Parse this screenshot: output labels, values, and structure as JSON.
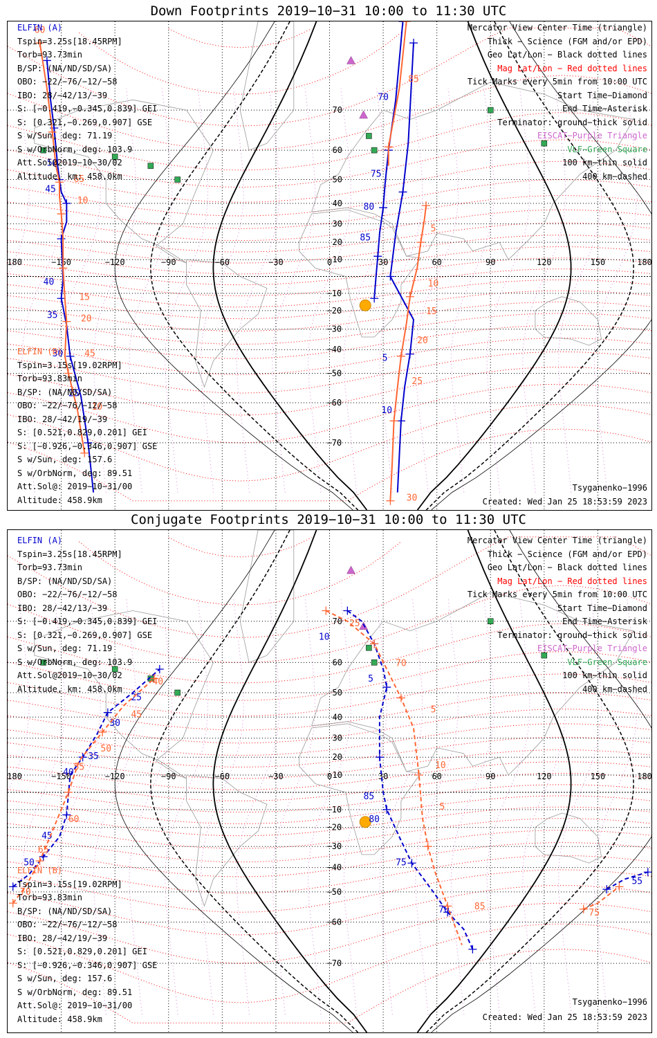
{
  "panels": [
    {
      "title": "Down Footprints 2019−10−31 10:00 to 11:30 UTC",
      "elfin_a": [
        "ELFIN (A)",
        "Tspin=3.25s[18.45RPM]",
        "Torb=93.73min",
        "B/SP: (NA/ND/SD/SA)",
        "OBO: −22/−76/−12/−58",
        "IBO: 28/−42/13/−39",
        "S: [−0.419,−0.345,0.839] GEI",
        "S: [0.321,−0.269,0.907] GSE",
        "S w/Sun, deg: 71.19",
        "S w/OrbNorm, deg: 103.9",
        "Att.Sol@2019−10−30/02",
        "Altitude, km: 458.0km"
      ],
      "elfin_b": [
        "ELFIN (B)",
        "Tspin=3.15s[19.02RPM]",
        "Torb=93.83min",
        "B/SP: (NA/ND/SD/SA)",
        "OBO: −22/−76/−12/−58",
        "IBO: 28/−42/19/−39",
        "S: [0.521,0.829,0.201] GEI",
        "S: [−0.926,−0.346,0.907] GSE",
        "S w/Sun, deg: 157.6",
        "S w/OrbNorm, deg: 89.51",
        "Att.Sol@: 2019−10−31/00",
        "Altitude: 458.9km"
      ],
      "model": "Tsyganenko−1996",
      "created": "Created: Wed Jan 25 18:53:59 2023"
    },
    {
      "title": "Conjugate Footprints 2019−10−31 10:00 to 11:30 UTC",
      "elfin_a": [
        "ELFIN (A)",
        "Tspin=3.25s[18.45RPM]",
        "Torb=93.73min",
        "B/SP: (NA/ND/SD/SA)",
        "OBO: −22/−76/−12/−58",
        "IBO: 28/−42/13/−39",
        "S: [−0.419,−0.345,0.839] GEI",
        "S: [0.321,−0.269,0.907] GSE",
        "S w/Sun, deg: 71.19",
        "S w/OrbNorm, deg: 103.9",
        "Att.Sol@2019−10−30/02",
        "Altitude, km: 458.0km"
      ],
      "elfin_b": [
        "ELFIN (B)",
        "Tspin=3.15s[19.02RPM]",
        "Torb=93.83min",
        "B/SP: (NA/ND/SD/SA)",
        "OBO: −22/−76/−12/−58",
        "IBO: 28/−42/19/−39",
        "S: [0.521,0.829,0.201] GEI",
        "S: [−0.926,−0.346,0.907] GSE",
        "S w/Sun, deg: 157.6",
        "S w/OrbNorm, deg: 89.51",
        "Att.Sol@: 2019−10−31/00",
        "Altitude: 458.9km"
      ],
      "model": "Tsyganenko−1996",
      "created": "Created: Wed Jan 25 18:53:59 2023"
    }
  ],
  "legend": [
    {
      "text": "Mercator View Center Time (triangle)",
      "color": "#000000"
    },
    {
      "text": "Thick − Science (FGM and/or EPD)",
      "color": "#000000"
    },
    {
      "text": "Geo Lat/Lon − Black dotted lines",
      "color": "#000000"
    },
    {
      "text": "Mag Lat/Lon − Red dotted lines",
      "color": "#ff0000"
    },
    {
      "text": "Tick Marks every 5min from 10:00 UTC",
      "color": "#000000"
    },
    {
      "text": "Start Time−Diamond",
      "color": "#000000"
    },
    {
      "text": "End Time−Asterisk",
      "color": "#000000"
    },
    {
      "text": "Terminator: ground−thick solid",
      "color": "#000000"
    },
    {
      "text": "EISCAT−Purple Triangle",
      "color": "#cc66cc"
    },
    {
      "text": "VLF−Green Square",
      "color": "#33aa55"
    },
    {
      "text": "100 km−thin solid",
      "color": "#000000"
    },
    {
      "text": "400 km−dashed",
      "color": "#000000"
    }
  ],
  "lon_ticks": [
    "180",
    "−150",
    "−120",
    "−90",
    "−60",
    "−30",
    "0",
    "30",
    "60",
    "90",
    "120",
    "150",
    "180"
  ],
  "lat_ticks_n": [
    "70",
    "60",
    "50",
    "40",
    "30",
    "20",
    "10"
  ],
  "lat_ticks_s": [
    "−10",
    "−20",
    "−30",
    "−40",
    "−50",
    "−60",
    "−70"
  ],
  "colors": {
    "elfin_a": "#0000cc",
    "elfin_b": "#ff6633",
    "eiscat": "#cc66cc",
    "vlf": "#33aa55",
    "sun": "#ffaa00",
    "mag_grid": "#ff0000"
  },
  "chart_data": [
    {
      "type": "map",
      "title": "Down Footprints 2019−10−31 10:00 to 11:30 UTC",
      "projection": "mercator",
      "xlim": [
        -180,
        180
      ],
      "ylim": [
        -80,
        82
      ],
      "series": [
        {
          "name": "ELFIN (A)",
          "color": "#0000cc",
          "tracks": [
            [
              [
                -158,
                78
              ],
              [
                -156,
                72
              ],
              [
                -154,
                66
              ],
              [
                -152,
                55
              ],
              [
                -151,
                50
              ],
              [
                -150,
                45
              ],
              [
                -147,
                40
              ],
              [
                -147,
                31
              ],
              [
                -150,
                22
              ],
              [
                -149,
                -2
              ],
              [
                -150,
                -13
              ],
              [
                -147,
                -28
              ],
              [
                -145,
                -43
              ],
              [
                -139,
                -58
              ],
              [
                -135,
                -70
              ],
              [
                -132,
                -78
              ]
            ],
            [
              [
                41,
                82
              ],
              [
                37,
                72
              ],
              [
                33,
                60
              ],
              [
                31,
                48
              ],
              [
                30,
                38
              ],
              [
                28,
                25
              ],
              [
                27,
                12
              ],
              [
                26,
                0
              ],
              [
                25,
                -13
              ]
            ],
            [
              [
                47,
                80
              ],
              [
                44,
                62
              ],
              [
                41,
                45
              ],
              [
                37,
                25
              ],
              [
                34,
                0
              ],
              [
                47,
                -25
              ],
              [
                45,
                -42
              ],
              [
                42,
                -55
              ],
              [
                40,
                -65
              ],
              [
                38,
                -78
              ]
            ]
          ],
          "tick_labels": [
            {
              "label": "70",
              "lon": 30,
              "lat": 72
            },
            {
              "label": "75",
              "lon": 26,
              "lat": 51
            },
            {
              "label": "80",
              "lon": 22,
              "lat": 37
            },
            {
              "label": "85",
              "lon": 20,
              "lat": 21
            },
            {
              "label": "5",
              "lon": 31,
              "lat": -45
            },
            {
              "label": "10",
              "lon": 32,
              "lat": -63
            },
            {
              "label": "50",
              "lon": -155,
              "lat": 55
            },
            {
              "label": "45",
              "lon": -156,
              "lat": 45
            },
            {
              "label": "40",
              "lon": -157,
              "lat": -5
            },
            {
              "label": "35",
              "lon": -155,
              "lat": -24
            },
            {
              "label": "30",
              "lon": -152,
              "lat": -43
            },
            {
              "label": "25",
              "lon": -143,
              "lat": -58
            }
          ]
        },
        {
          "name": "ELFIN (B)",
          "color": "#ff6633",
          "tracks": [
            [
              [
                -162,
                80
              ],
              [
                -158,
                74
              ],
              [
                -155,
                65
              ],
              [
                -153,
                55
              ],
              [
                -151,
                49
              ],
              [
                -151,
                43
              ],
              [
                -150,
                35
              ],
              [
                -149,
                22
              ],
              [
                -149,
                5
              ],
              [
                -148,
                -13
              ],
              [
                -147,
                -26
              ],
              [
                -148,
                -43
              ],
              [
                -146,
                -50
              ],
              [
                -141,
                -62
              ],
              [
                -137,
                -72
              ]
            ],
            [
              [
                43,
                82
              ],
              [
                39,
                74
              ],
              [
                33,
                61
              ],
              [
                33,
                55
              ]
            ],
            [
              [
                54,
                39
              ],
              [
                53,
                32
              ],
              [
                51,
                20
              ],
              [
                49,
                5
              ],
              [
                45,
                -12
              ],
              [
                43,
                -27
              ],
              [
                40,
                -43
              ],
              [
                38,
                -55
              ],
              [
                36,
                -65
              ],
              [
                35,
                -74
              ],
              [
                34,
                -79
              ]
            ]
          ],
          "tick_labels": [
            {
              "label": "85",
              "lon": 47,
              "lat": 75
            },
            {
              "label": "5",
              "lon": 58,
              "lat": 26
            },
            {
              "label": "10",
              "lon": 58,
              "lat": -6
            },
            {
              "label": "15",
              "lon": 57,
              "lat": -22
            },
            {
              "label": "20",
              "lon": 52,
              "lat": -37
            },
            {
              "label": "25",
              "lon": 49,
              "lat": -54
            },
            {
              "label": "30",
              "lon": 46,
              "lat": -79
            },
            {
              "label": "60",
              "lon": -162,
              "lat": 81
            },
            {
              "label": "65",
              "lon": -140,
              "lat": 49
            },
            {
              "label": "10",
              "lon": -138,
              "lat": 40
            },
            {
              "label": "15",
              "lon": -137,
              "lat": -14
            },
            {
              "label": "20",
              "lon": -136,
              "lat": -26
            },
            {
              "label": "45",
              "lon": -134,
              "lat": -43
            },
            {
              "label": "10",
              "lon": -130,
              "lat": -62
            }
          ]
        }
      ]
    },
    {
      "type": "map",
      "title": "Conjugate Footprints 2019−10−31 10:00 to 11:30 UTC",
      "projection": "mercator",
      "xlim": [
        -180,
        180
      ],
      "ylim": [
        -80,
        82
      ],
      "series": [
        {
          "name": "ELFIN (A)",
          "color": "#0000cc",
          "tracks": [
            [
              [
                -177,
                -48
              ],
              [
                -168,
                -43
              ],
              [
                -160,
                -35
              ],
              [
                -151,
                -25
              ],
              [
                -147,
                -13
              ],
              [
                -145,
                10
              ],
              [
                -138,
                20
              ],
              [
                -130,
                32
              ],
              [
                -124,
                42
              ],
              [
                -110,
                50
              ],
              [
                -95,
                58
              ]
            ],
            [
              [
                10,
                72
              ],
              [
                18,
                70
              ],
              [
                25,
                65
              ],
              [
                30,
                58
              ],
              [
                32,
                52
              ],
              [
                28,
                40
              ],
              [
                28,
                20
              ],
              [
                30,
                0
              ],
              [
                32,
                -10
              ],
              [
                40,
                -27
              ],
              [
                46,
                -38
              ],
              [
                58,
                -50
              ],
              [
                66,
                -57
              ],
              [
                75,
                -62
              ],
              [
                80,
                -67
              ]
            ],
            [
              [
                155,
                -49
              ],
              [
                165,
                -45
              ],
              [
                178,
                -42
              ]
            ]
          ],
          "tick_labels": [
            {
              "label": "10",
              "lon": -3,
              "lat": 66
            },
            {
              "label": "5",
              "lon": 23,
              "lat": 54
            },
            {
              "label": "85",
              "lon": 22,
              "lat": -4
            },
            {
              "label": "80",
              "lon": 25,
              "lat": -17
            },
            {
              "label": "75",
              "lon": 40,
              "lat": -39
            },
            {
              "label": "70",
              "lon": 64,
              "lat": -57
            },
            {
              "label": "55",
              "lon": 172,
              "lat": -47
            },
            {
              "label": "25",
              "lon": -108,
              "lat": 47
            },
            {
              "label": "30",
              "lon": -120,
              "lat": 36
            },
            {
              "label": "35",
              "lon": -132,
              "lat": 19
            },
            {
              "label": "40",
              "lon": -146,
              "lat": 10
            },
            {
              "label": "45",
              "lon": -158,
              "lat": -26
            },
            {
              "label": "50",
              "lon": -168,
              "lat": -39
            }
          ]
        },
        {
          "name": "ELFIN (B)",
          "color": "#ff6633",
          "tracks": [
            [
              [
                -177,
                -54
              ],
              [
                -170,
                -48
              ],
              [
                -162,
                -37
              ],
              [
                -155,
                -22
              ],
              [
                -146,
                0
              ],
              [
                -140,
                18
              ],
              [
                -127,
                33
              ],
              [
                -115,
                45
              ],
              [
                -98,
                55
              ]
            ],
            [
              [
                -2,
                72
              ],
              [
                10,
                70
              ],
              [
                25,
                65
              ],
              [
                32,
                58
              ],
              [
                40,
                48
              ],
              [
                47,
                35
              ],
              [
                50,
                10
              ],
              [
                52,
                -15
              ],
              [
                55,
                -30
              ],
              [
                59,
                -42
              ],
              [
                66,
                -55
              ],
              [
                74,
                -66
              ]
            ],
            [
              [
                142,
                -56
              ],
              [
                150,
                -54
              ],
              [
                162,
                -48
              ]
            ]
          ],
          "tick_labels": [
            {
              "label": "25",
              "lon": 14,
              "lat": 69
            },
            {
              "label": "70",
              "lon": 40,
              "lat": 59
            },
            {
              "label": "5",
              "lon": 58,
              "lat": 42
            },
            {
              "label": "10",
              "lon": 62,
              "lat": 14
            },
            {
              "label": "5",
              "lon": 63,
              "lat": -10
            },
            {
              "label": "85",
              "lon": 84,
              "lat": -56
            },
            {
              "label": "75",
              "lon": 148,
              "lat": -58
            },
            {
              "label": "40",
              "lon": -96,
              "lat": 53
            },
            {
              "label": "45",
              "lon": -108,
              "lat": 40
            },
            {
              "label": "50",
              "lon": -125,
              "lat": 23
            },
            {
              "label": "55",
              "lon": -140,
              "lat": 13
            },
            {
              "label": "60",
              "lon": -143,
              "lat": -17
            },
            {
              "label": "65",
              "lon": -160,
              "lat": -33
            },
            {
              "label": "70",
              "lon": -170,
              "lat": -51
            }
          ]
        }
      ]
    }
  ]
}
